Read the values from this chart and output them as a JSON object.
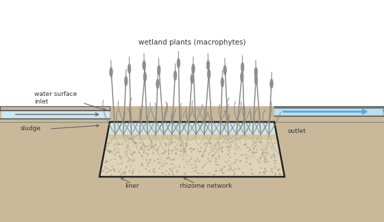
{
  "bg_color": "#ffffff",
  "soil_color": "#c9b99a",
  "liner_color": "#222222",
  "water_color": "#cce8f0",
  "gravel_color": "#e0d4b8",
  "gravel_top_color": "#d4c8a0",
  "plant_color": "#888888",
  "cattail_color": "#909090",
  "cattail_dark": "#787878",
  "root_color": "#999999",
  "text_color": "#333333",
  "arrow_color": "#555555",
  "flow_arrow_color": "#55aadd",
  "inlet_color": "#cbbfa8",
  "outlet_color": "#cbbfa8",
  "inlet_edge": "#555555",
  "label_macrophytes": "wetland plants (macrophytes)",
  "label_water_inlet": "water surface\ninlet",
  "label_sludge": "sludge",
  "label_outlet": "outlet",
  "label_liner": "liner",
  "label_rhizome": "rhizome network"
}
